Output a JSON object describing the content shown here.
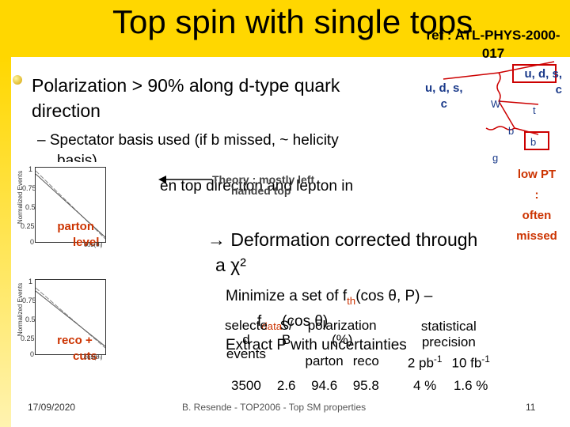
{
  "slide": {
    "title": "Top spin with single tops",
    "reference_lines": [
      "ref : ATL-PHYS-2000-",
      "017"
    ],
    "bullet": "Polarization > 90% along d-type quark direction",
    "bullet_line1": "Polarization > 90% along d-type quark",
    "bullet_line2": "direction",
    "sub_bullet_line1": "– Spectator basis used (if b missed, ~ helicity",
    "sub_bullet_line2": "basis)",
    "sub_bullet_line3": "en top direction and lepton in",
    "theory_line1": "Theory : mostly left",
    "theory_line2": "handed top",
    "deformation_line1": "Deformation corrected through",
    "deformation_line2": "a χ²",
    "minimize_line1_prefix": "Minimize a set of f",
    "minimize_line1_sub": "th",
    "minimize_line1_suffix": "(cos θ, P) –",
    "minimize_line2_prefix": "f",
    "minimize_line2_sub": "data",
    "minimize_line2_suffix": "(cos θ)",
    "extract_line": "Extract P with uncertainties",
    "footer_date": "17/09/2020",
    "footer_center": "B. Resende - TOP2006 - Top SM properties",
    "page_number": "11"
  },
  "diagram": {
    "quark_in": "u, d, s,",
    "quark_in2": "c",
    "quark_out": "u, d, s,",
    "quark_out2": "c",
    "w_label": "W",
    "t_label": "t",
    "b_label": "b",
    "bbar_label": "b",
    "g_label": "g",
    "low_pt_lines": [
      "low PT",
      ":",
      "often",
      "missed"
    ]
  },
  "plots": [
    {
      "caption_line1": "parton",
      "caption_line2": "level",
      "ylabel": "Normalized Events",
      "xlabel": "cos(θₗ)",
      "yticks": [
        "1",
        "0.75",
        "0.5",
        "0.25",
        "0"
      ],
      "xticks": [
        "-1",
        "-0.5",
        "0",
        "0.5",
        "1"
      ]
    },
    {
      "caption_line1": "reco +",
      "caption_line2": "cuts",
      "ylabel": "Normalized Events",
      "xlabel": "cos(θₗ)",
      "yticks": [
        "1",
        "0.75",
        "0.5",
        "0.25",
        "0"
      ],
      "xticks": [
        "-1",
        "-0.5",
        "0",
        "0.5",
        "1"
      ]
    }
  ],
  "table": {
    "h_selected_1": "selecte",
    "h_selected_2": "d",
    "h_selected_3": "events",
    "h_sb_1": "S/",
    "h_sb_2": "B",
    "h_pol_1": "polarization",
    "h_pol_2": "(%)",
    "h_parton": "parton",
    "h_reco": "reco",
    "h_stat_1": "statistical",
    "h_stat_2": "precision",
    "lumi_1": "2 pb",
    "lumi_1_sup": "-1",
    "lumi_2": "10 fb",
    "lumi_2_sup": "-1",
    "row": {
      "events": "3500",
      "sb": "2.6",
      "parton": "94.6",
      "reco": "95.8",
      "prec_1": "4 %",
      "prec_2": "1.6 %"
    }
  },
  "colors": {
    "band": "#ffd700",
    "accent": "#cc3300",
    "diagram": "#cc0000"
  }
}
